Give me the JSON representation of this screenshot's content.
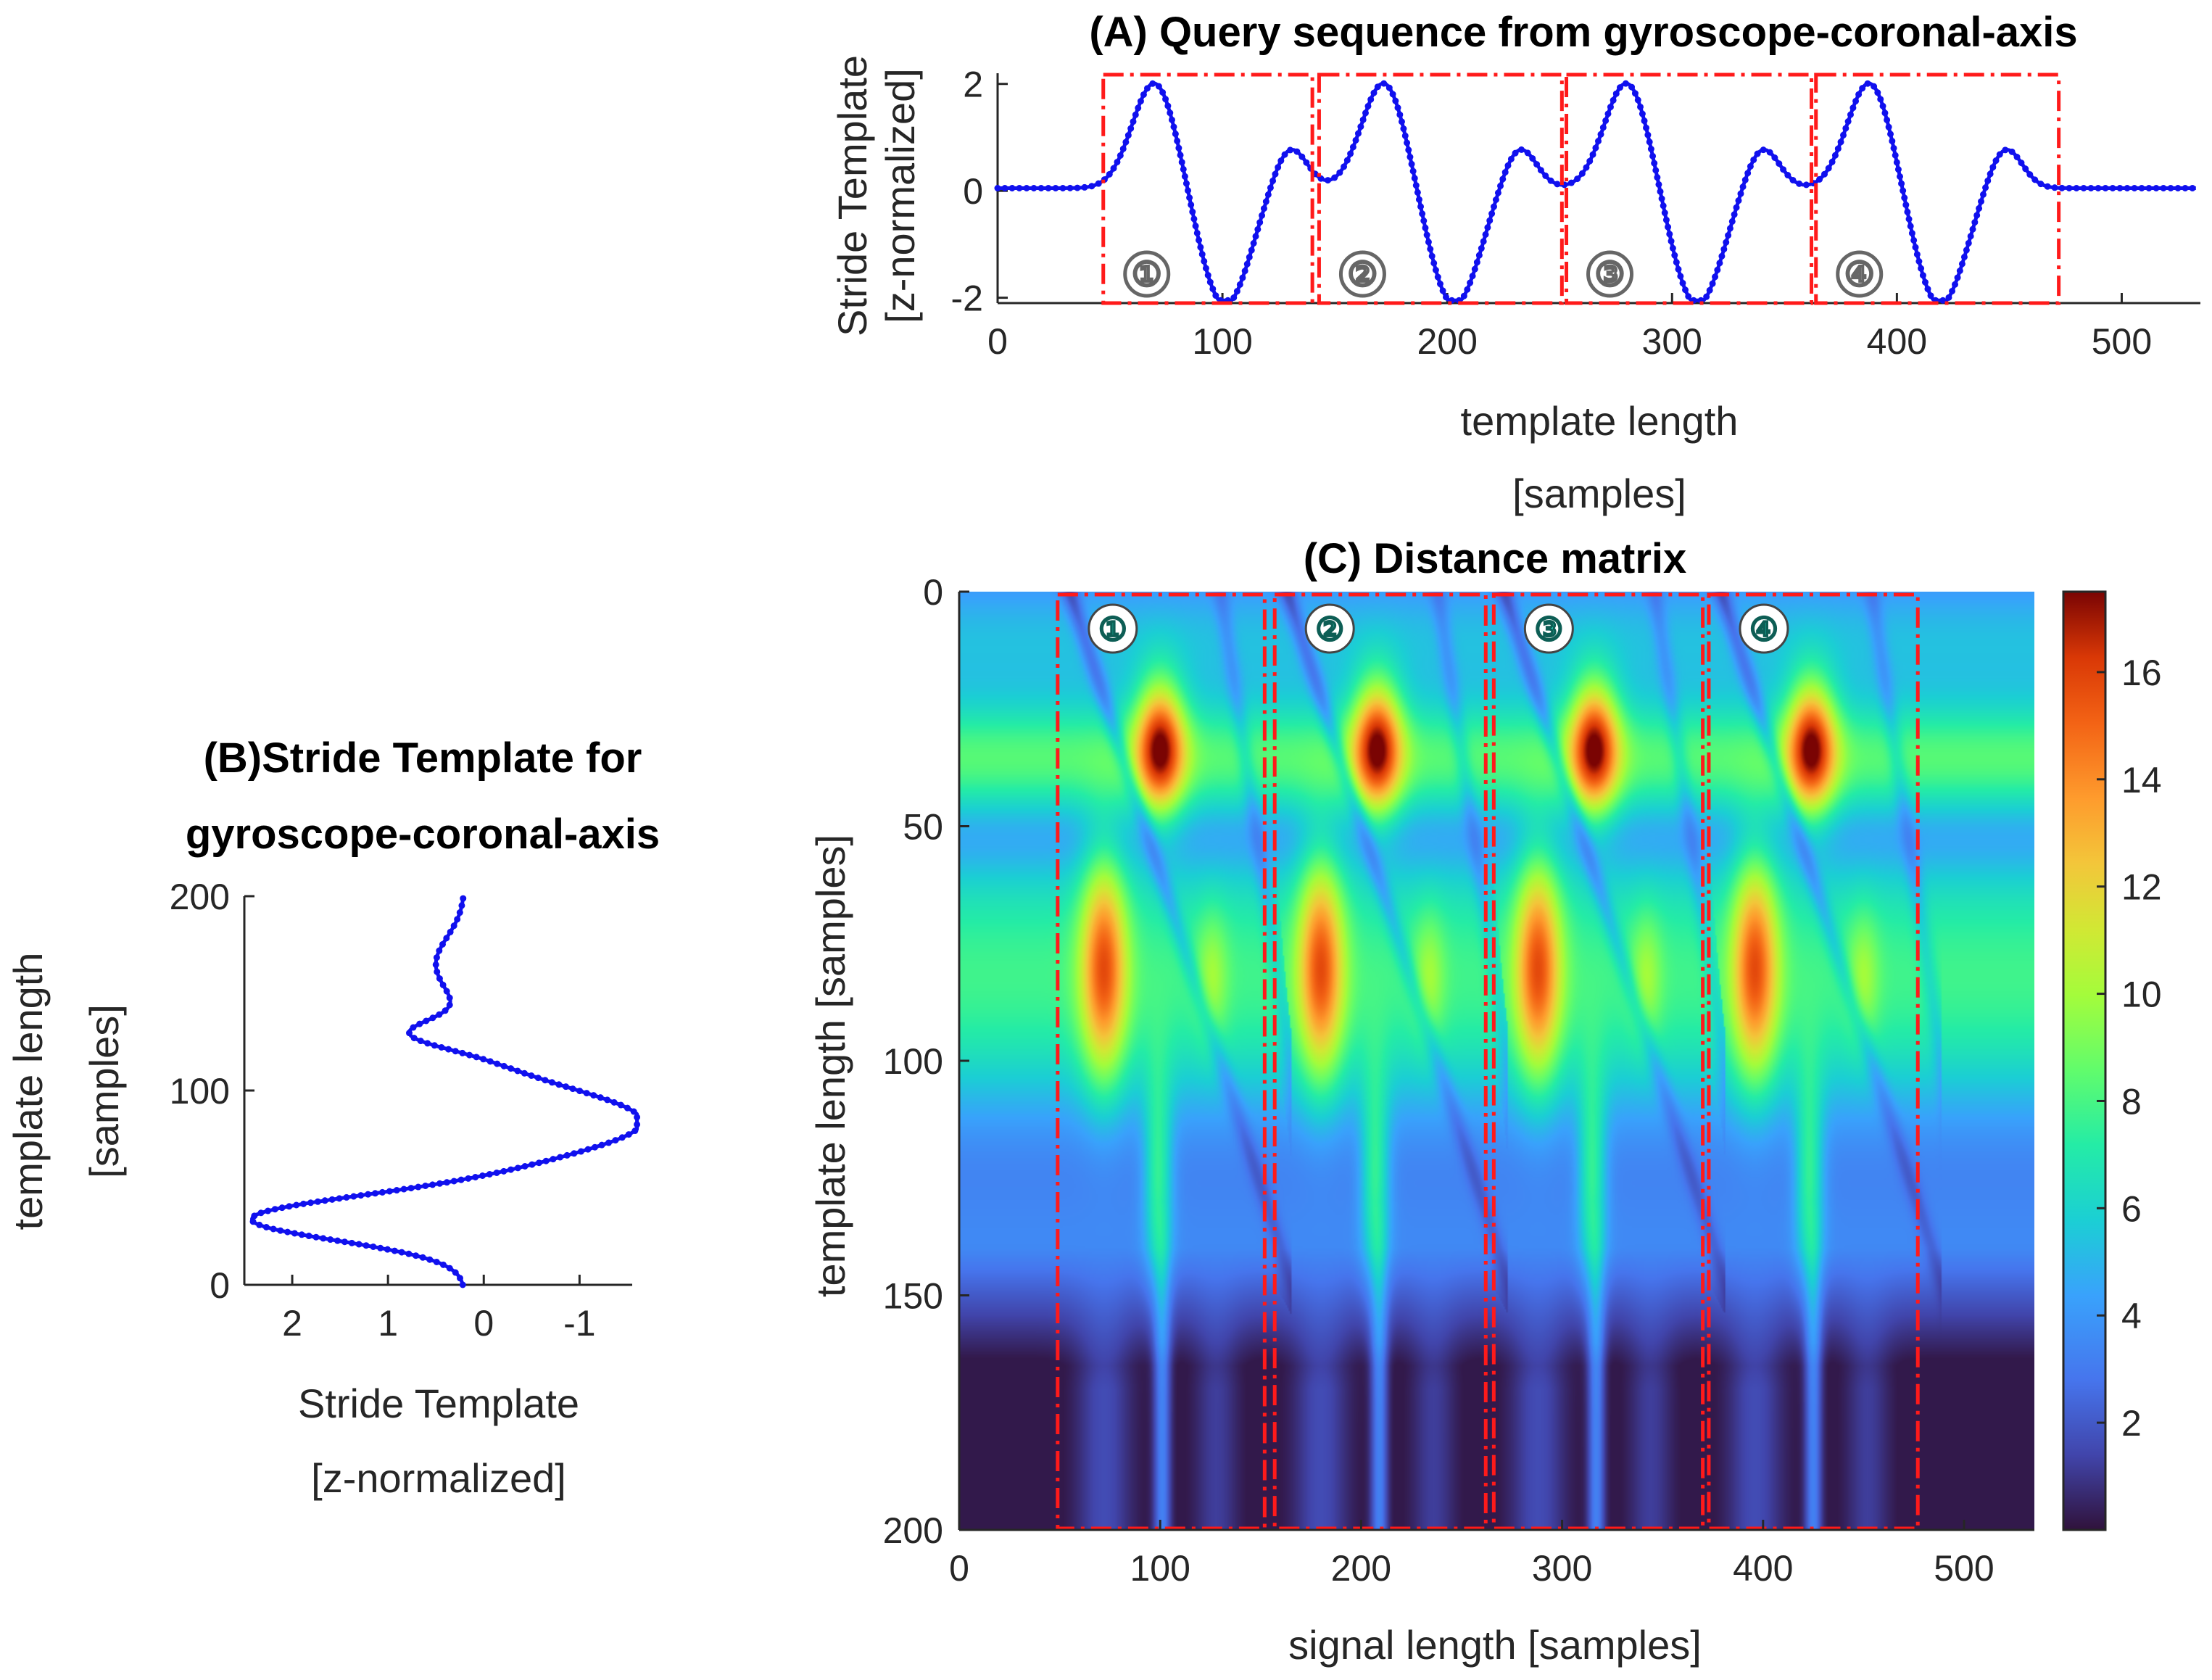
{
  "chart_data": [
    {
      "id": "A",
      "type": "line",
      "title": "(A) Query sequence from gyroscope-coronal-axis",
      "xlabel_lines": [
        "template length",
        "[samples]"
      ],
      "ylabel_lines": [
        "Stride Template",
        "[z-normalized]"
      ],
      "xlim": [
        0,
        535
      ],
      "ylim": [
        -2.1,
        2.2
      ],
      "xticks": [
        "0",
        "100",
        "200",
        "300",
        "400",
        "500"
      ],
      "xtick_values": [
        0,
        100,
        200,
        300,
        400,
        500
      ],
      "yticks": [
        "2",
        "0",
        "-2"
      ],
      "ytick_values": [
        2,
        0,
        -2
      ],
      "series_note": "Blue dotted line: four stride cycles, each a peak (~2), a trough (~-2.1) and a smaller peak (~0.8), flat (~0.05) between strides",
      "stride_starts": [
        48,
        150,
        258,
        366
      ],
      "boxes": [
        {
          "label": "①",
          "x0": 47,
          "x1": 140
        },
        {
          "label": "②",
          "x0": 143,
          "x1": 251
        },
        {
          "label": "③",
          "x0": 253,
          "x1": 362
        },
        {
          "label": "④",
          "x0": 364,
          "x1": 472
        }
      ]
    },
    {
      "id": "B",
      "type": "line",
      "title_lines": [
        "(B)Stride Template for",
        "gyroscope-coronal-axis"
      ],
      "xlabel_lines": [
        "Stride Template",
        "[z-normalized]"
      ],
      "ylabel_lines": [
        "template length",
        "[samples]"
      ],
      "xlim": [
        2.5,
        -1.55
      ],
      "ylim": [
        0,
        200
      ],
      "xticks": [
        "2",
        "1",
        "0",
        "-1"
      ],
      "xtick_values": [
        2,
        1,
        0,
        -1
      ],
      "yticks": [
        "0",
        "100",
        "200"
      ],
      "ytick_values": [
        0,
        100,
        200
      ],
      "series_note": "Stride template rotated 90 degrees: starts at 0.2, minimum -1.6 near sample 85, maximum 2.4 near sample 34, second peak 0.7 near sample 130"
    },
    {
      "id": "C",
      "type": "heatmap",
      "title": "(C) Distance matrix",
      "xlabel": "signal length [samples]",
      "ylabel": "template length [samples]",
      "xlim": [
        0,
        535
      ],
      "ylim": [
        0,
        200
      ],
      "xticks": [
        "0",
        "100",
        "200",
        "300",
        "400",
        "500"
      ],
      "xtick_values": [
        0,
        100,
        200,
        300,
        400,
        500
      ],
      "yticks": [
        "0",
        "50",
        "100",
        "150",
        "200"
      ],
      "ytick_values": [
        0,
        50,
        100,
        150,
        200
      ],
      "colorbar": {
        "ticks": [
          "2",
          "4",
          "6",
          "8",
          "10",
          "12",
          "14",
          "16"
        ],
        "tick_values": [
          2,
          4,
          6,
          8,
          10,
          12,
          14,
          16
        ],
        "range": [
          0,
          17.5
        ],
        "colormap": "turbo"
      },
      "stride_offsets": [
        0,
        108,
        216,
        324
      ],
      "boxes": [
        {
          "label": "①",
          "x0": 49,
          "x1": 152
        },
        {
          "label": "②",
          "x0": 157,
          "x1": 262
        },
        {
          "label": "③",
          "x0": 266,
          "x1": 370
        },
        {
          "label": "④",
          "x0": 373,
          "x1": 477
        }
      ]
    }
  ]
}
